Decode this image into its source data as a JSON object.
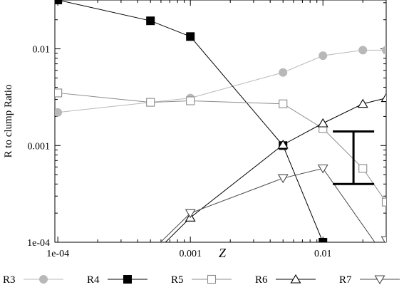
{
  "chart_data": {
    "type": "line",
    "xlabel": "Z",
    "ylabel": "R to clump Ratio",
    "xscale": "log",
    "yscale": "log",
    "xlim": [
      9.5e-05,
      0.03
    ],
    "ylim": [
      0.0001,
      0.032
    ],
    "x_ticks": [
      {
        "value": 0.0001,
        "label": "1e-04"
      },
      {
        "value": 0.001,
        "label": "0.001"
      },
      {
        "value": 0.01,
        "label": "0.01"
      }
    ],
    "y_ticks": [
      {
        "value": 0.0001,
        "label": "1e-04"
      },
      {
        "value": 0.001,
        "label": "0.001"
      },
      {
        "value": 0.01,
        "label": "0.01"
      }
    ],
    "grid": false,
    "legend_position": "bottom",
    "series": [
      {
        "name": "R3",
        "color": "#b8b8b8",
        "marker": "filled-circle",
        "points": [
          [
            0.0001,
            0.0022
          ],
          [
            0.0005,
            0.0028
          ],
          [
            0.001,
            0.0031
          ],
          [
            0.005,
            0.0057
          ],
          [
            0.01,
            0.0085
          ],
          [
            0.02,
            0.0097
          ],
          [
            0.03,
            0.0097
          ]
        ]
      },
      {
        "name": "R4",
        "color": "#000000",
        "marker": "filled-square",
        "points": [
          [
            0.0001,
            0.032
          ],
          [
            0.0005,
            0.0195
          ],
          [
            0.001,
            0.0134
          ],
          [
            0.005,
            0.001
          ],
          [
            0.01,
            0.0001
          ],
          [
            0.011,
            9e-05
          ]
        ]
      },
      {
        "name": "R5",
        "color": "#8c8c8c",
        "marker": "open-square",
        "points": [
          [
            0.0001,
            0.0035
          ],
          [
            0.0005,
            0.0028
          ],
          [
            0.001,
            0.0029
          ],
          [
            0.005,
            0.0027
          ],
          [
            0.01,
            0.0015
          ],
          [
            0.02,
            0.00058
          ],
          [
            0.03,
            0.00026
          ]
        ]
      },
      {
        "name": "R6",
        "color": "#000000",
        "marker": "open-triangle-up",
        "points": [
          [
            0.0006,
            9e-05
          ],
          [
            0.001,
            0.00018
          ],
          [
            0.005,
            0.00102
          ],
          [
            0.01,
            0.0017
          ],
          [
            0.02,
            0.0027
          ],
          [
            0.03,
            0.0031
          ]
        ]
      },
      {
        "name": "R7",
        "color": "#4a4a4a",
        "marker": "open-triangle-down",
        "points": [
          [
            0.00055,
            9e-05
          ],
          [
            0.001,
            0.0002
          ],
          [
            0.005,
            0.00046
          ],
          [
            0.01,
            0.00058
          ],
          [
            0.026,
            9e-05
          ]
        ]
      },
      {
        "name": "R7",
        "color": "#4a4a4a",
        "marker": "open-triangle-down",
        "points": [
          [
            0.03,
            0.000105
          ]
        ],
        "show_in_legend": false
      }
    ],
    "error_bar": {
      "x": 0.017,
      "y_low": 0.0004,
      "y_high": 0.0014
    }
  }
}
